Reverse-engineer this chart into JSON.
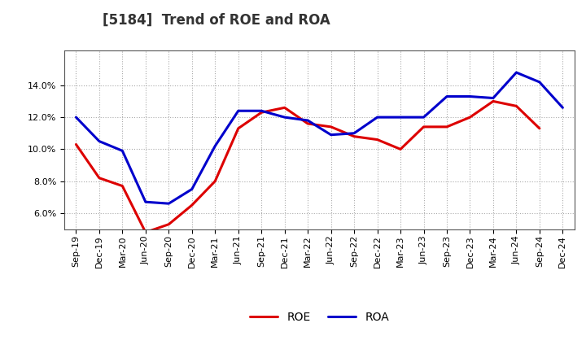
{
  "title": "[5184]  Trend of ROE and ROA",
  "labels": [
    "Sep-19",
    "Dec-19",
    "Mar-20",
    "Jun-20",
    "Sep-20",
    "Dec-20",
    "Mar-21",
    "Jun-21",
    "Sep-21",
    "Dec-21",
    "Mar-22",
    "Jun-22",
    "Sep-22",
    "Dec-22",
    "Mar-23",
    "Jun-23",
    "Sep-23",
    "Dec-23",
    "Mar-24",
    "Jun-24",
    "Sep-24",
    "Dec-24"
  ],
  "ROE": [
    10.3,
    8.2,
    7.7,
    4.8,
    5.3,
    6.5,
    8.0,
    11.3,
    12.3,
    12.6,
    11.6,
    11.4,
    10.8,
    10.6,
    10.0,
    11.4,
    11.4,
    12.0,
    13.0,
    12.7,
    11.3,
    null
  ],
  "ROA": [
    12.0,
    10.5,
    9.9,
    6.7,
    6.6,
    7.5,
    10.2,
    12.4,
    12.4,
    12.0,
    11.8,
    10.9,
    11.0,
    12.0,
    12.0,
    12.0,
    13.3,
    13.3,
    13.2,
    14.8,
    14.2,
    12.6
  ],
  "roe_color": "#dd0000",
  "roa_color": "#0000cc",
  "grid_color": "#aaaaaa",
  "bg_color": "#ffffff",
  "ylim": [
    5.0,
    16.2
  ],
  "yticks": [
    6.0,
    8.0,
    10.0,
    12.0,
    14.0
  ],
  "line_width": 2.2,
  "title_fontsize": 12,
  "tick_fontsize": 8,
  "legend_fontsize": 10
}
